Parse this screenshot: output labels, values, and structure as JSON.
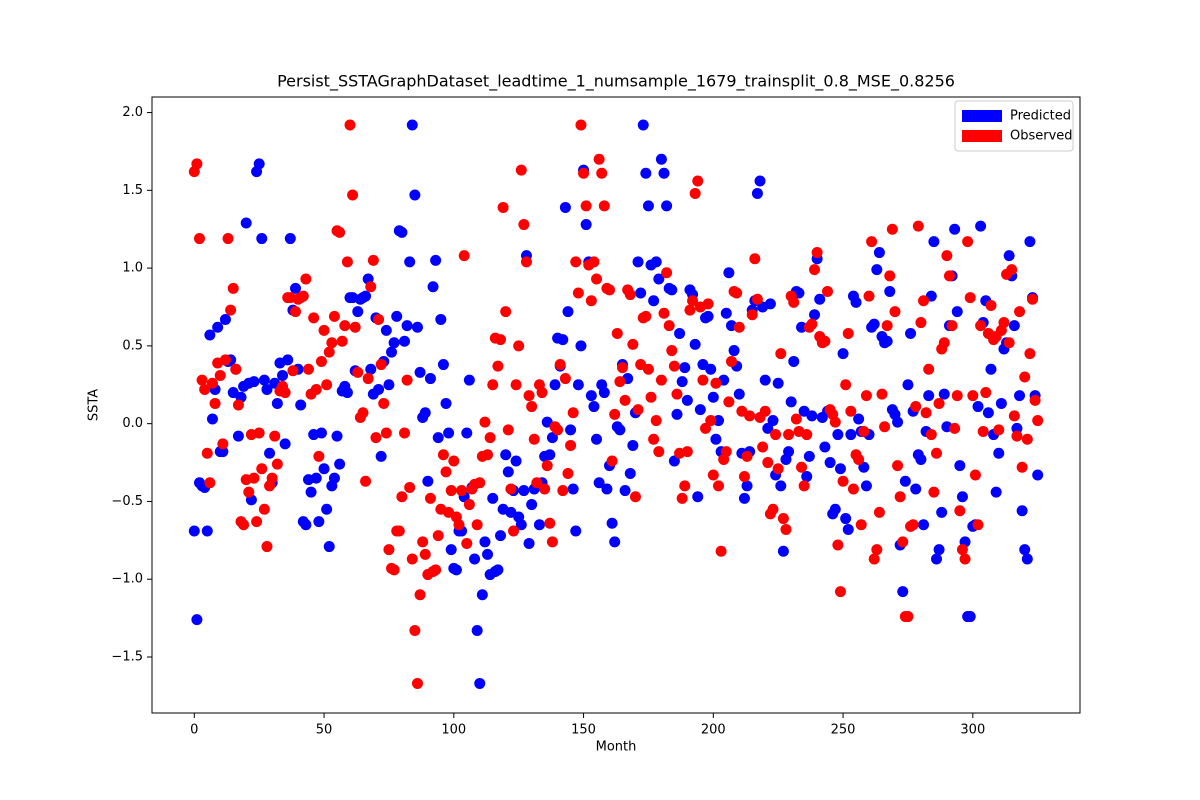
{
  "chart_data": {
    "type": "scatter",
    "title": "Persist_SSTAGraphDataset_leadtime_1_numsample_1679_trainsplit_0.8_MSE_0.8256",
    "xlabel": "Month",
    "ylabel": "SSTA",
    "legend": "upper right",
    "xlim": [
      -16.3,
      341.3
    ],
    "ylim": [
      -1.86,
      2.1
    ],
    "xticks": [
      0,
      50,
      100,
      150,
      200,
      250,
      300
    ],
    "yticks": [
      {
        "value": -1.5,
        "label": "−1.5"
      },
      {
        "value": -1.0,
        "label": "−1.0"
      },
      {
        "value": -0.5,
        "label": "−0.5"
      },
      {
        "value": 0.0,
        "label": "0.0"
      },
      {
        "value": 0.5,
        "label": "0.5"
      },
      {
        "value": 1.0,
        "label": "1.0"
      },
      {
        "value": 1.5,
        "label": "1.5"
      },
      {
        "value": 2.0,
        "label": "2.0"
      }
    ],
    "x": [
      0,
      1,
      2,
      3,
      4,
      5,
      6,
      7,
      8,
      9,
      10,
      11,
      12,
      13,
      14,
      15,
      16,
      17,
      18,
      19,
      20,
      21,
      22,
      23,
      24,
      25,
      26,
      27,
      28,
      29,
      30,
      31,
      32,
      33,
      34,
      35,
      36,
      37,
      38,
      39,
      40,
      41,
      42,
      43,
      44,
      45,
      46,
      47,
      48,
      49,
      50,
      51,
      52,
      53,
      54,
      55,
      56,
      57,
      58,
      59,
      60,
      61,
      62,
      63,
      64,
      65,
      66,
      67,
      68,
      69,
      70,
      71,
      72,
      73,
      74,
      75,
      76,
      77,
      78,
      79,
      80,
      81,
      82,
      83,
      84,
      85,
      86,
      87,
      88,
      89,
      90,
      91,
      92,
      93,
      94,
      95,
      96,
      97,
      98,
      99,
      100,
      101,
      102,
      103,
      104,
      105,
      106,
      107,
      108,
      109,
      110,
      111,
      112,
      113,
      114,
      115,
      116,
      117,
      118,
      119,
      120,
      121,
      122,
      123,
      124,
      125,
      126,
      127,
      128,
      129,
      130,
      131,
      132,
      133,
      134,
      135,
      136,
      137,
      138,
      139,
      140,
      141,
      142,
      143,
      144,
      145,
      146,
      147,
      148,
      149,
      150,
      151,
      152,
      153,
      154,
      155,
      156,
      157,
      158,
      159,
      160,
      161,
      162,
      163,
      164,
      165,
      166,
      167,
      168,
      169,
      170,
      171,
      172,
      173,
      174,
      175,
      176,
      177,
      178,
      179,
      180,
      181,
      182,
      183,
      184,
      185,
      186,
      187,
      188,
      189,
      190,
      191,
      192,
      193,
      194,
      195,
      196,
      197,
      198,
      199,
      200,
      201,
      202,
      203,
      204,
      205,
      206,
      207,
      208,
      209,
      210,
      211,
      212,
      213,
      214,
      215,
      216,
      217,
      218,
      219,
      220,
      221,
      222,
      223,
      224,
      225,
      226,
      227,
      228,
      229,
      230,
      231,
      232,
      233,
      234,
      235,
      236,
      237,
      238,
      239,
      240,
      241,
      242,
      243,
      244,
      245,
      246,
      247,
      248,
      249,
      250,
      251,
      252,
      253,
      254,
      255,
      256,
      257,
      258,
      259,
      260,
      261,
      262,
      263,
      264,
      265,
      266,
      267,
      268,
      269,
      270,
      271,
      272,
      273,
      274,
      275,
      276,
      277,
      278,
      279,
      280,
      281,
      282,
      283,
      284,
      285,
      286,
      287,
      288,
      289,
      290,
      291,
      292,
      293,
      294,
      295,
      296,
      297,
      298,
      299,
      300,
      301,
      302,
      303,
      304,
      305,
      306,
      307,
      308,
      309,
      310,
      311,
      312,
      313,
      314,
      315,
      316,
      317,
      318,
      319,
      320,
      321,
      322,
      323,
      324,
      325
    ],
    "series": [
      {
        "name": "Predicted",
        "color": "#0000ff",
        "values": [
          -0.69,
          -1.26,
          -0.38,
          -0.4,
          -0.41,
          -0.69,
          0.57,
          0.03,
          0.22,
          0.62,
          -0.18,
          -0.18,
          0.67,
          0.4,
          0.41,
          0.2,
          0.35,
          -0.08,
          0.17,
          0.24,
          1.29,
          0.26,
          -0.49,
          0.27,
          1.62,
          1.67,
          1.19,
          0.28,
          0.22,
          -0.19,
          -0.38,
          0.26,
          0.13,
          0.39,
          0.31,
          -0.13,
          0.41,
          1.19,
          0.73,
          0.87,
          0.35,
          0.12,
          -0.63,
          -0.65,
          -0.36,
          -0.44,
          -0.07,
          -0.35,
          -0.63,
          -0.06,
          -0.29,
          -0.55,
          -0.79,
          -0.4,
          -0.35,
          -0.08,
          -0.26,
          0.21,
          0.24,
          0.2,
          0.81,
          0.81,
          0.34,
          0.72,
          0.8,
          0.81,
          0.82,
          0.93,
          0.35,
          0.19,
          0.68,
          0.22,
          -0.21,
          0.4,
          0.6,
          0.25,
          0.46,
          0.52,
          0.69,
          1.24,
          1.23,
          0.53,
          0.63,
          1.04,
          1.92,
          1.47,
          0.62,
          0.33,
          0.04,
          0.07,
          -0.37,
          0.29,
          0.88,
          1.05,
          -0.09,
          0.67,
          0.38,
          0.13,
          -0.06,
          -0.81,
          -0.93,
          -0.94,
          -0.69,
          -0.69,
          -0.47,
          -0.06,
          0.28,
          -0.41,
          -0.87,
          -1.33,
          -1.67,
          -1.1,
          -0.76,
          -0.84,
          -0.97,
          -0.48,
          -0.95,
          -0.94,
          -0.72,
          -0.55,
          -0.2,
          -0.31,
          -0.57,
          -0.43,
          -0.24,
          -0.6,
          -0.65,
          -0.43,
          1.08,
          -0.77,
          -0.52,
          -0.42,
          -0.39,
          -0.65,
          -0.38,
          -0.21,
          0.01,
          -0.2,
          -0.09,
          0.25,
          0.55,
          0.37,
          0.54,
          1.39,
          0.72,
          -0.04,
          -0.42,
          -0.69,
          0.25,
          0.5,
          1.63,
          1.28,
          1.04,
          0.18,
          0.11,
          -0.1,
          -0.38,
          0.25,
          0.2,
          -0.42,
          -0.27,
          -0.64,
          -0.76,
          -0.02,
          -0.04,
          0.38,
          -0.43,
          0.29,
          -0.32,
          -0.14,
          0.07,
          1.04,
          0.84,
          1.92,
          1.61,
          1.4,
          1.02,
          0.79,
          1.04,
          0.93,
          1.7,
          1.61,
          1.4,
          0.87,
          0.86,
          -0.24,
          0.06,
          0.58,
          0.27,
          0.36,
          0.15,
          0.86,
          0.83,
          0.51,
          -0.47,
          0.09,
          0.38,
          0.68,
          0.69,
          0.35,
          0.17,
          -0.1,
          0.02,
          -0.18,
          0.28,
          0.71,
          0.97,
          0.63,
          0.47,
          0.37,
          0.19,
          -0.19,
          -0.48,
          -0.4,
          -0.18,
          0.73,
          0.79,
          1.48,
          1.56,
          0.75,
          0.28,
          -0.03,
          0.77,
          0.02,
          -0.33,
          0.26,
          -0.4,
          -0.82,
          -0.23,
          -0.18,
          0.14,
          0.4,
          0.85,
          0.84,
          0.62,
          0.08,
          -0.34,
          -0.21,
          0.05,
          0.7,
          1.06,
          0.8,
          0.04,
          -0.15,
          0.08,
          -0.25,
          -0.58,
          -0.55,
          -0.07,
          -0.29,
          0.45,
          -0.61,
          -0.68,
          -0.07,
          0.82,
          0.78,
          0.03,
          -0.05,
          -0.28,
          -0.4,
          -0.07,
          0.62,
          0.64,
          0.99,
          1.1,
          0.56,
          0.52,
          0.53,
          0.85,
          0.09,
          0.06,
          0.01,
          -0.78,
          -1.08,
          -0.37,
          0.25,
          0.58,
          0.08,
          -0.42,
          -0.2,
          -0.23,
          -0.65,
          -0.05,
          0.18,
          0.82,
          1.17,
          -0.87,
          -0.81,
          -0.57,
          0.19,
          -0.02,
          0.63,
          0.95,
          1.25,
          0.72,
          -0.27,
          -0.47,
          -0.76,
          -1.24,
          -1.24,
          -0.66,
          -0.65,
          0.11,
          1.27,
          0.65,
          0.79,
          0.07,
          0.35,
          -0.07,
          -0.44,
          -0.19,
          0.13,
          0.48,
          0.52,
          1.08,
          0.95,
          0.63,
          -0.03,
          0.18,
          -0.56,
          -0.81,
          -0.87,
          1.17,
          0.81,
          0.18,
          -0.33
        ]
      },
      {
        "name": "Observed",
        "color": "#ff0000",
        "values": [
          1.62,
          1.67,
          1.19,
          0.28,
          0.22,
          -0.19,
          -0.38,
          0.26,
          0.13,
          0.39,
          0.31,
          -0.13,
          0.41,
          1.19,
          0.73,
          0.87,
          0.35,
          0.12,
          -0.63,
          -0.65,
          -0.36,
          -0.44,
          -0.07,
          -0.35,
          -0.63,
          -0.06,
          -0.29,
          -0.55,
          -0.79,
          -0.4,
          -0.35,
          -0.08,
          -0.26,
          0.21,
          0.24,
          0.2,
          0.81,
          0.81,
          0.34,
          0.72,
          0.8,
          0.81,
          0.82,
          0.93,
          0.35,
          0.19,
          0.68,
          0.22,
          -0.21,
          0.4,
          0.6,
          0.25,
          0.46,
          0.52,
          0.69,
          1.24,
          1.23,
          0.53,
          0.63,
          1.04,
          1.92,
          1.47,
          0.62,
          0.33,
          0.04,
          0.07,
          -0.37,
          0.29,
          0.88,
          1.05,
          -0.09,
          0.67,
          0.38,
          0.13,
          -0.06,
          -0.81,
          -0.93,
          -0.94,
          -0.69,
          -0.69,
          -0.47,
          -0.06,
          0.28,
          -0.41,
          -0.87,
          -1.33,
          -1.67,
          -1.1,
          -0.76,
          -0.84,
          -0.97,
          -0.48,
          -0.95,
          -0.94,
          -0.72,
          -0.55,
          -0.2,
          -0.31,
          -0.57,
          -0.43,
          -0.24,
          -0.6,
          -0.65,
          -0.43,
          1.08,
          -0.77,
          -0.52,
          -0.42,
          -0.39,
          -0.65,
          -0.38,
          -0.21,
          0.01,
          -0.2,
          -0.09,
          0.25,
          0.55,
          0.37,
          0.54,
          1.39,
          0.72,
          -0.04,
          -0.42,
          -0.69,
          0.25,
          0.5,
          1.63,
          1.28,
          1.04,
          0.18,
          0.11,
          -0.1,
          -0.38,
          0.25,
          0.2,
          -0.42,
          -0.27,
          -0.64,
          -0.76,
          -0.02,
          -0.04,
          0.38,
          -0.43,
          0.29,
          -0.32,
          -0.14,
          0.07,
          1.04,
          0.84,
          1.92,
          1.61,
          1.4,
          1.02,
          0.79,
          1.04,
          0.93,
          1.7,
          1.61,
          1.4,
          0.87,
          0.86,
          -0.24,
          0.06,
          0.58,
          0.27,
          0.36,
          0.15,
          0.86,
          0.83,
          0.51,
          -0.47,
          0.09,
          0.38,
          0.68,
          0.69,
          0.35,
          0.17,
          -0.1,
          0.02,
          -0.18,
          0.28,
          0.71,
          0.97,
          0.63,
          0.47,
          0.37,
          0.19,
          -0.19,
          -0.48,
          -0.4,
          -0.18,
          0.73,
          0.79,
          1.48,
          1.56,
          0.75,
          0.28,
          -0.03,
          0.77,
          0.02,
          -0.33,
          0.26,
          -0.4,
          -0.82,
          -0.23,
          -0.18,
          0.14,
          0.4,
          0.85,
          0.84,
          0.62,
          0.08,
          -0.34,
          -0.21,
          0.05,
          0.7,
          1.06,
          0.8,
          0.04,
          -0.15,
          0.08,
          -0.25,
          -0.58,
          -0.55,
          -0.07,
          -0.29,
          0.45,
          -0.61,
          -0.68,
          -0.07,
          0.82,
          0.78,
          0.03,
          -0.05,
          -0.28,
          -0.4,
          -0.07,
          0.62,
          0.64,
          0.99,
          1.1,
          0.56,
          0.52,
          0.53,
          0.85,
          0.09,
          0.06,
          0.01,
          -0.78,
          -1.08,
          -0.37,
          0.25,
          0.58,
          0.08,
          -0.42,
          -0.2,
          -0.23,
          -0.65,
          -0.05,
          0.18,
          0.82,
          1.17,
          -0.87,
          -0.81,
          -0.57,
          0.19,
          -0.02,
          0.63,
          0.95,
          1.25,
          0.72,
          -0.27,
          -0.47,
          -0.76,
          -1.24,
          -1.24,
          -0.66,
          -0.65,
          0.11,
          1.27,
          0.65,
          0.79,
          0.07,
          0.35,
          -0.07,
          -0.44,
          -0.19,
          0.13,
          0.48,
          0.52,
          1.08,
          0.95,
          0.63,
          -0.03,
          0.18,
          -0.56,
          -0.81,
          -0.87,
          1.17,
          0.81,
          0.18,
          -0.33,
          -0.65,
          0.63,
          -0.05,
          0.2,
          0.58,
          0.76,
          0.54,
          0.56,
          -0.04,
          0.6,
          0.65,
          0.96,
          0.52,
          0.99,
          0.05,
          -0.08,
          0.72,
          -0.28,
          0.3,
          -0.1,
          0.45,
          0.8,
          0.15,
          0.02
        ]
      }
    ]
  }
}
